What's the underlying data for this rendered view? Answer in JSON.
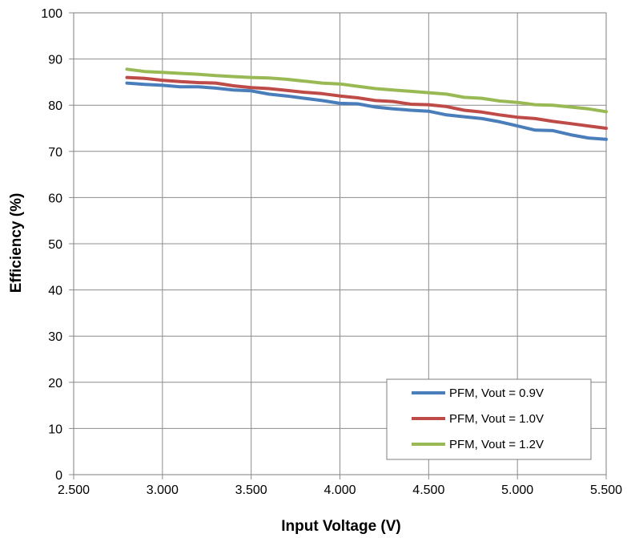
{
  "chart_data": {
    "type": "line",
    "xlabel": "Input Voltage (V)",
    "ylabel": "Efficiency (%)",
    "xlim": [
      2.5,
      5.5
    ],
    "ylim": [
      0,
      100
    ],
    "x_ticks": [
      "2.500",
      "3.000",
      "3.500",
      "4.000",
      "4.500",
      "5.000",
      "5.500"
    ],
    "y_ticks": [
      "0",
      "10",
      "20",
      "30",
      "40",
      "50",
      "60",
      "70",
      "80",
      "90",
      "100"
    ],
    "grid": true,
    "legend_position": "bottom-right",
    "x": [
      2.8,
      2.9,
      3.0,
      3.1,
      3.2,
      3.3,
      3.4,
      3.5,
      3.6,
      3.7,
      3.8,
      3.9,
      4.0,
      4.1,
      4.2,
      4.3,
      4.4,
      4.5,
      4.6,
      4.7,
      4.8,
      4.9,
      5.0,
      5.1,
      5.2,
      5.3,
      5.4,
      5.5
    ],
    "series": [
      {
        "name": "PFM, Vout = 0.9V",
        "color": "#4a7ebb",
        "values": [
          84.8,
          84.5,
          84.3,
          84.0,
          84.0,
          83.7,
          83.3,
          83.1,
          82.4,
          82.0,
          81.5,
          81.0,
          80.4,
          80.3,
          79.6,
          79.2,
          78.9,
          78.7,
          77.9,
          77.5,
          77.1,
          76.4,
          75.5,
          74.6,
          74.5,
          73.6,
          72.9,
          72.6
        ]
      },
      {
        "name": "PFM, Vout = 1.0V",
        "color": "#be4b48",
        "values": [
          86.0,
          85.8,
          85.4,
          85.1,
          84.9,
          84.8,
          84.2,
          83.8,
          83.6,
          83.2,
          82.8,
          82.5,
          82.0,
          81.6,
          81.0,
          80.8,
          80.2,
          80.1,
          79.7,
          78.9,
          78.5,
          77.9,
          77.4,
          77.1,
          76.5,
          76.0,
          75.5,
          75.0
        ]
      },
      {
        "name": "PFM, Vout = 1.2V",
        "color": "#98b954",
        "values": [
          87.8,
          87.3,
          87.1,
          86.9,
          86.7,
          86.4,
          86.2,
          86.0,
          85.9,
          85.6,
          85.2,
          84.8,
          84.6,
          84.1,
          83.6,
          83.3,
          83.0,
          82.7,
          82.4,
          81.7,
          81.5,
          80.9,
          80.6,
          80.1,
          80.0,
          79.6,
          79.2,
          78.6
        ]
      }
    ]
  }
}
